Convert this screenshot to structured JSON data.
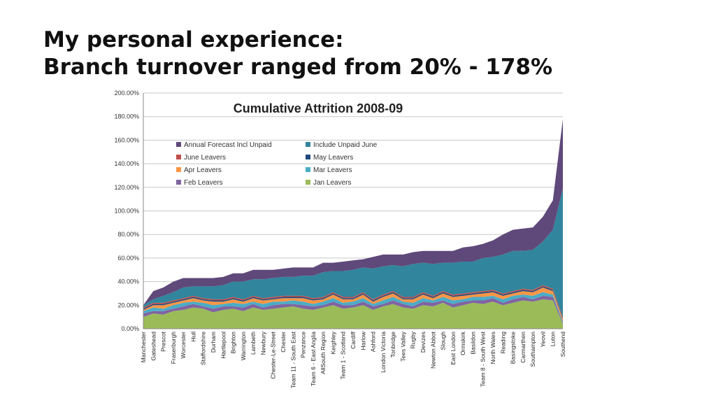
{
  "slide": {
    "title_line1": "My personal experience:",
    "title_line2": "Branch turnover ranged from 20% - 178%"
  },
  "chart_data": {
    "type": "area",
    "stacked": true,
    "title": "Cumulative Attrition 2008-09",
    "xlabel": "",
    "ylabel": "",
    "ylim": [
      0,
      2.0
    ],
    "yticks": [
      0,
      0.2,
      0.4,
      0.6,
      0.8,
      1.0,
      1.2,
      1.4,
      1.6,
      1.8,
      2.0
    ],
    "ytick_labels": [
      "0.00%",
      "20.00%",
      "40.00%",
      "60.00%",
      "80.00%",
      "100.00%",
      "120.00%",
      "140.00%",
      "160.00%",
      "180.00%",
      "200.00%"
    ],
    "grid": true,
    "legend_position": "top-left",
    "categories": [
      "Manchester",
      "Gateshead",
      "Prescot",
      "Fraserburgh",
      "Worcester",
      "Hull",
      "Staffordshire",
      "Durham",
      "Hartlepool",
      "Brighton",
      "Warrington",
      "Lambeth",
      "Newbury",
      "Chester-Le-Street",
      "Chester",
      "Team 11 - South East",
      "Penzance",
      "Team 6 - East Anglia",
      "AllSouth Region",
      "Keighley",
      "Team 1 - Scotland",
      "Cardiff",
      "Harlow",
      "Ashford",
      "London Victoria",
      "Tonbridge",
      "Tees Valley",
      "Rugby",
      "Devizes",
      "Newton Abbot",
      "Slough",
      "East London",
      "Ormskirk",
      "Basildon",
      "Team 8 - South West",
      "North Wales",
      "Reading",
      "Basingstoke",
      "Carmarthen",
      "Southampton",
      "Yeovil",
      "Luton",
      "Southend"
    ],
    "series": [
      {
        "name": "Jan Leavers",
        "color": "#9BBB59",
        "values": [
          0.1,
          0.13,
          0.12,
          0.15,
          0.16,
          0.18,
          0.17,
          0.14,
          0.16,
          0.17,
          0.15,
          0.18,
          0.16,
          0.17,
          0.18,
          0.19,
          0.17,
          0.16,
          0.18,
          0.2,
          0.17,
          0.18,
          0.2,
          0.16,
          0.19,
          0.21,
          0.18,
          0.17,
          0.2,
          0.19,
          0.22,
          0.18,
          0.2,
          0.22,
          0.21,
          0.23,
          0.2,
          0.22,
          0.24,
          0.23,
          0.25,
          0.24,
          0.04
        ]
      },
      {
        "name": "Feb Leavers",
        "color": "#8064A2",
        "values": [
          0.03,
          0.02,
          0.03,
          0.02,
          0.03,
          0.03,
          0.02,
          0.03,
          0.03,
          0.02,
          0.03,
          0.03,
          0.02,
          0.03,
          0.03,
          0.02,
          0.03,
          0.03,
          0.02,
          0.03,
          0.03,
          0.02,
          0.03,
          0.03,
          0.02,
          0.03,
          0.03,
          0.02,
          0.03,
          0.03,
          0.02,
          0.03,
          0.03,
          0.02,
          0.03,
          0.03,
          0.02,
          0.03,
          0.03,
          0.02,
          0.03,
          0.03,
          0.01
        ]
      },
      {
        "name": "Mar Leavers",
        "color": "#4BACC6",
        "values": [
          0.02,
          0.03,
          0.02,
          0.03,
          0.03,
          0.02,
          0.03,
          0.03,
          0.02,
          0.03,
          0.03,
          0.02,
          0.03,
          0.03,
          0.02,
          0.03,
          0.03,
          0.02,
          0.03,
          0.03,
          0.02,
          0.03,
          0.03,
          0.02,
          0.03,
          0.03,
          0.02,
          0.03,
          0.03,
          0.02,
          0.03,
          0.03,
          0.02,
          0.03,
          0.03,
          0.02,
          0.03,
          0.03,
          0.02,
          0.03,
          0.03,
          0.02,
          0.01
        ]
      },
      {
        "name": "Apr Leavers",
        "color": "#F79646",
        "values": [
          0.01,
          0.02,
          0.03,
          0.02,
          0.02,
          0.03,
          0.02,
          0.03,
          0.02,
          0.03,
          0.02,
          0.03,
          0.03,
          0.02,
          0.03,
          0.02,
          0.03,
          0.03,
          0.02,
          0.03,
          0.03,
          0.02,
          0.03,
          0.02,
          0.03,
          0.03,
          0.02,
          0.03,
          0.03,
          0.02,
          0.03,
          0.03,
          0.03,
          0.02,
          0.03,
          0.03,
          0.03,
          0.02,
          0.03,
          0.03,
          0.04,
          0.03,
          0.02
        ]
      },
      {
        "name": "May Leavers",
        "color": "#1F497D",
        "values": [
          0.01,
          0.01,
          0.01,
          0.01,
          0.01,
          0.01,
          0.01,
          0.01,
          0.01,
          0.01,
          0.01,
          0.01,
          0.01,
          0.01,
          0.01,
          0.01,
          0.01,
          0.01,
          0.01,
          0.01,
          0.01,
          0.01,
          0.01,
          0.01,
          0.01,
          0.01,
          0.01,
          0.01,
          0.01,
          0.01,
          0.01,
          0.01,
          0.01,
          0.01,
          0.01,
          0.01,
          0.01,
          0.01,
          0.01,
          0.01,
          0.01,
          0.01,
          0.01
        ]
      },
      {
        "name": "June Leavers",
        "color": "#C0504D",
        "values": [
          0.01,
          0.01,
          0.01,
          0.01,
          0.01,
          0.01,
          0.01,
          0.01,
          0.01,
          0.01,
          0.01,
          0.01,
          0.01,
          0.01,
          0.01,
          0.01,
          0.01,
          0.01,
          0.01,
          0.01,
          0.01,
          0.01,
          0.01,
          0.01,
          0.01,
          0.01,
          0.01,
          0.01,
          0.01,
          0.01,
          0.01,
          0.01,
          0.01,
          0.01,
          0.01,
          0.01,
          0.01,
          0.01,
          0.01,
          0.01,
          0.01,
          0.01,
          0.01
        ]
      },
      {
        "name": "Include Unpaid June",
        "color": "#31859C",
        "values": [
          0.02,
          0.03,
          0.06,
          0.07,
          0.09,
          0.08,
          0.1,
          0.11,
          0.12,
          0.13,
          0.15,
          0.14,
          0.16,
          0.16,
          0.16,
          0.16,
          0.17,
          0.19,
          0.21,
          0.18,
          0.22,
          0.23,
          0.21,
          0.26,
          0.24,
          0.22,
          0.26,
          0.28,
          0.25,
          0.27,
          0.24,
          0.27,
          0.27,
          0.26,
          0.28,
          0.28,
          0.33,
          0.34,
          0.32,
          0.34,
          0.37,
          0.5,
          1.09
        ]
      },
      {
        "name": "Annual Forecast Incl Unpaid",
        "color": "#5F497A",
        "values": [
          0.0,
          0.07,
          0.07,
          0.09,
          0.08,
          0.07,
          0.07,
          0.07,
          0.07,
          0.07,
          0.07,
          0.08,
          0.08,
          0.07,
          0.07,
          0.08,
          0.07,
          0.07,
          0.08,
          0.07,
          0.08,
          0.08,
          0.07,
          0.1,
          0.1,
          0.09,
          0.1,
          0.1,
          0.1,
          0.11,
          0.1,
          0.1,
          0.12,
          0.13,
          0.12,
          0.14,
          0.17,
          0.18,
          0.19,
          0.19,
          0.21,
          0.25,
          0.59
        ]
      }
    ],
    "legend_order": [
      "Annual Forecast Incl Unpaid",
      "Include Unpaid June",
      "June Leavers",
      "May Leavers",
      "Apr Leavers",
      "Mar Leavers",
      "Feb Leavers",
      "Jan Leavers"
    ]
  }
}
